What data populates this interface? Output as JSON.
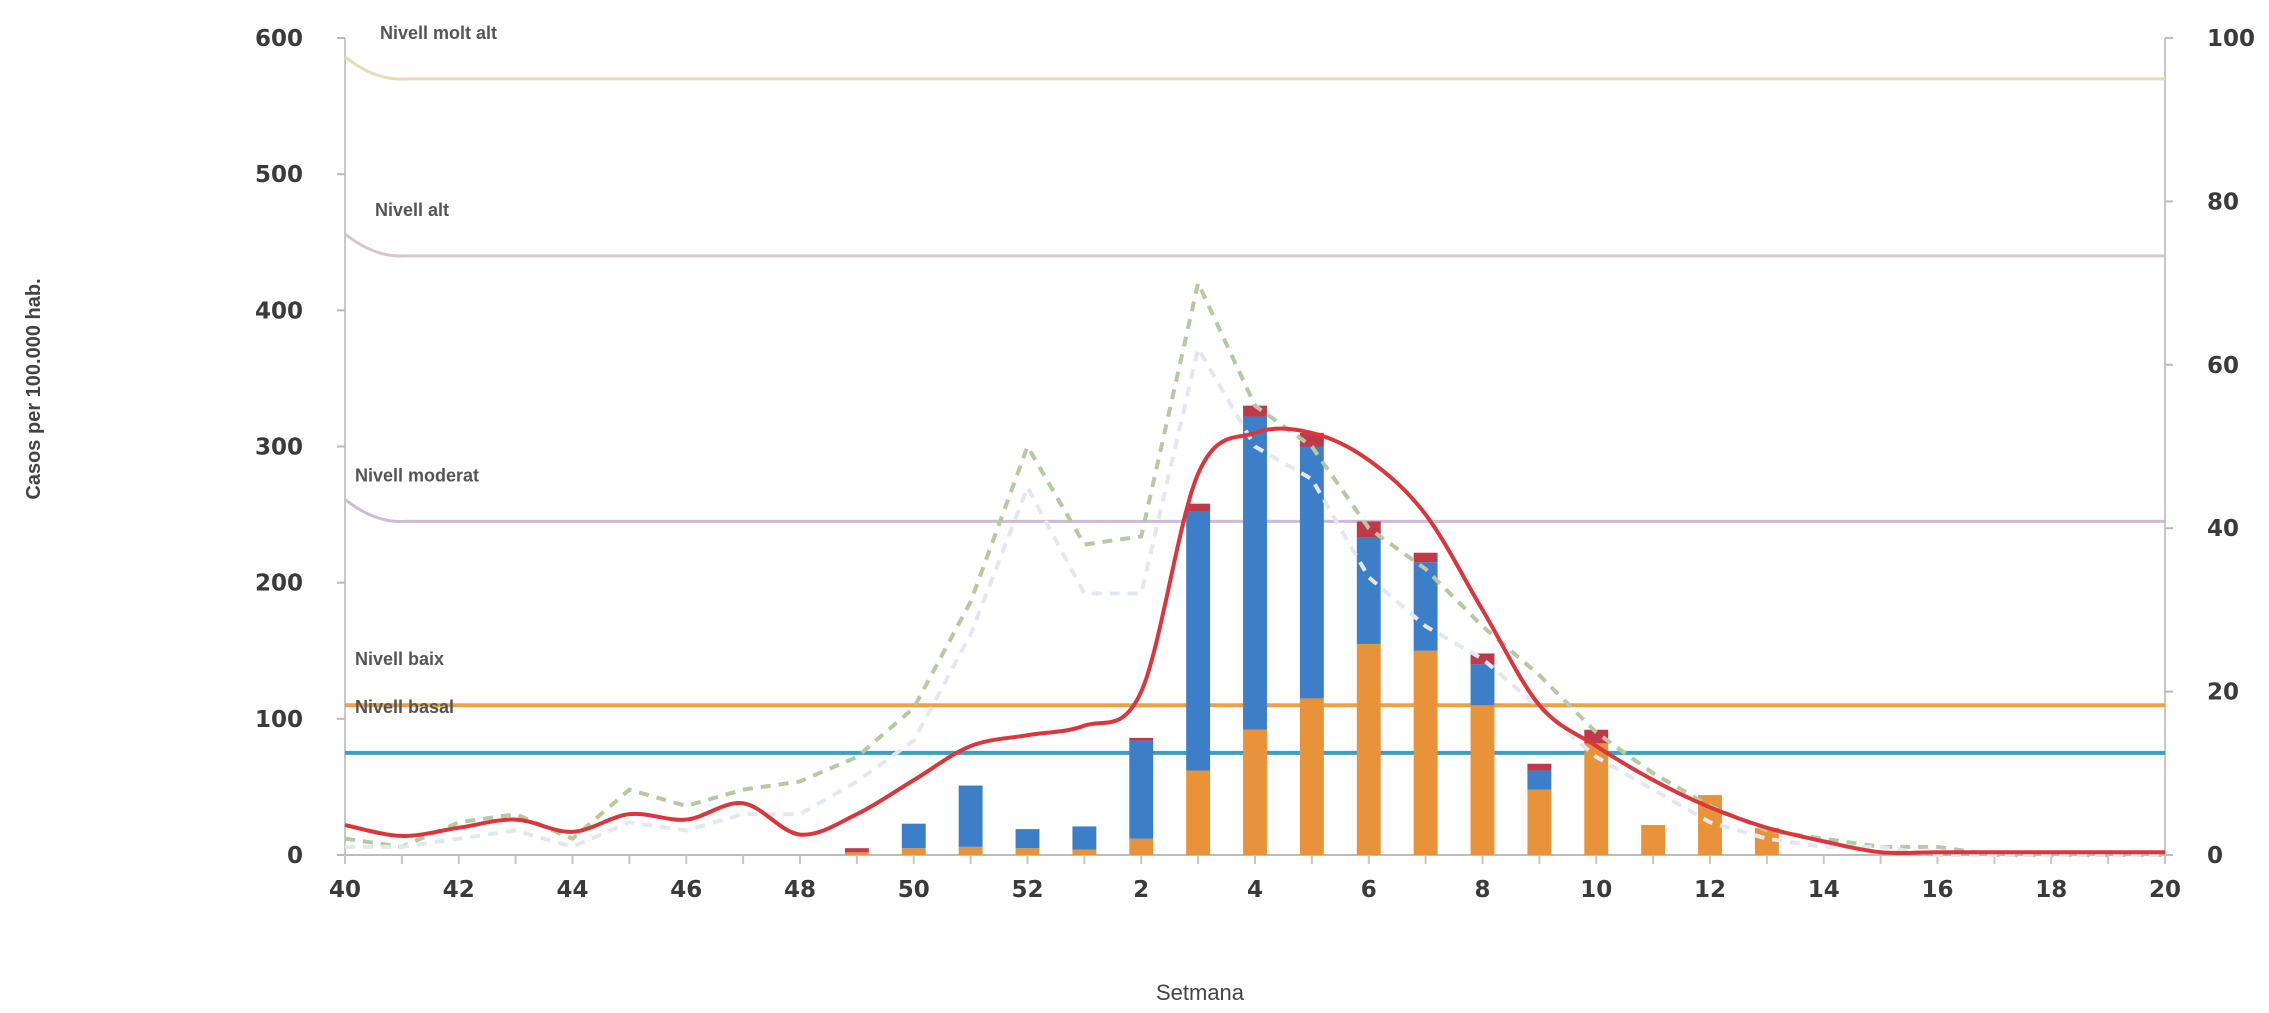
{
  "chart_data": {
    "type": "bar",
    "title": "",
    "xlabel": "Setmana",
    "ylabel": "Casos per 100.000 hab.",
    "ylim": [
      0,
      600
    ],
    "y2lim": [
      0,
      100
    ],
    "y_ticks": [
      "0",
      "100",
      "200",
      "300",
      "400",
      "500",
      "600"
    ],
    "y2_ticks": [
      "0",
      "20",
      "40",
      "60",
      "80",
      "100"
    ],
    "weeks": [
      "40",
      "41",
      "42",
      "43",
      "44",
      "45",
      "46",
      "47",
      "48",
      "49",
      "50",
      "51",
      "52",
      "1",
      "2",
      "3",
      "4",
      "5",
      "6",
      "7",
      "8",
      "9",
      "10",
      "11",
      "12",
      "13",
      "14",
      "15",
      "16",
      "17",
      "18",
      "19",
      "20"
    ],
    "x_tick_labels": [
      "40",
      "42",
      "44",
      "46",
      "48",
      "50",
      "52",
      "2",
      "4",
      "6",
      "8",
      "10",
      "12",
      "14",
      "16",
      "18",
      "20"
    ],
    "bar_series": [
      {
        "color": "#e8923a",
        "values": [
          0,
          0,
          0,
          0,
          0,
          0,
          0,
          0,
          0,
          2,
          5,
          6,
          5,
          4,
          12,
          62,
          92,
          115,
          155,
          150,
          110,
          48,
          82,
          22,
          44,
          20,
          0,
          0,
          0,
          0,
          0,
          0,
          0
        ]
      },
      {
        "color": "#3d7ec8",
        "values": [
          0,
          0,
          0,
          0,
          0,
          0,
          0,
          0,
          0,
          0,
          18,
          45,
          14,
          17,
          72,
          190,
          230,
          185,
          78,
          65,
          30,
          14,
          0,
          0,
          0,
          0,
          0,
          0,
          0,
          0,
          0,
          0,
          0
        ]
      },
      {
        "color": "#c0394b",
        "values": [
          0,
          0,
          0,
          0,
          0,
          0,
          0,
          0,
          0,
          3,
          0,
          0,
          0,
          0,
          2,
          6,
          8,
          10,
          12,
          7,
          8,
          5,
          10,
          0,
          0,
          0,
          0,
          0,
          0,
          0,
          0,
          0,
          0
        ]
      }
    ],
    "rate_line": {
      "color": "#d9363e",
      "values": [
        22,
        14,
        20,
        26,
        17,
        30,
        26,
        38,
        15,
        30,
        55,
        80,
        88,
        95,
        120,
        280,
        310,
        310,
        290,
        250,
        180,
        110,
        80,
        55,
        35,
        20,
        10,
        2,
        2,
        2,
        2,
        2,
        2
      ]
    },
    "dashed_series": [
      {
        "color": "#b6c9a3",
        "values": [
          2,
          1,
          4,
          5,
          2,
          8,
          6,
          8,
          9,
          12,
          18,
          31,
          50,
          38,
          39,
          70,
          55,
          50,
          40,
          35,
          28,
          22,
          15,
          10,
          6,
          3,
          2,
          1,
          1,
          0,
          0,
          0,
          0
        ]
      },
      {
        "color": "#e3e8f0",
        "values": [
          1,
          1,
          2,
          3,
          1,
          4,
          3,
          5,
          5,
          9,
          14,
          27,
          45,
          32,
          32,
          62,
          50,
          46,
          34,
          28,
          24,
          18,
          12,
          8,
          4,
          2,
          1,
          1,
          0,
          0,
          0,
          0,
          0
        ]
      }
    ],
    "levels": [
      {
        "label": "Nivell molt alt",
        "value": 570,
        "color": "#e3ddb8"
      },
      {
        "label": "Nivell alt",
        "value": 440,
        "color": "#d6c7cf"
      },
      {
        "label": "Nivell moderat",
        "value": 245,
        "color": "#cdbcd6"
      },
      {
        "label": "Nivell baix",
        "value": 110,
        "color": "#f0a040"
      },
      {
        "label": "Nivell basal",
        "value": 75,
        "color": "#3b9fc4"
      }
    ],
    "grid": false
  }
}
